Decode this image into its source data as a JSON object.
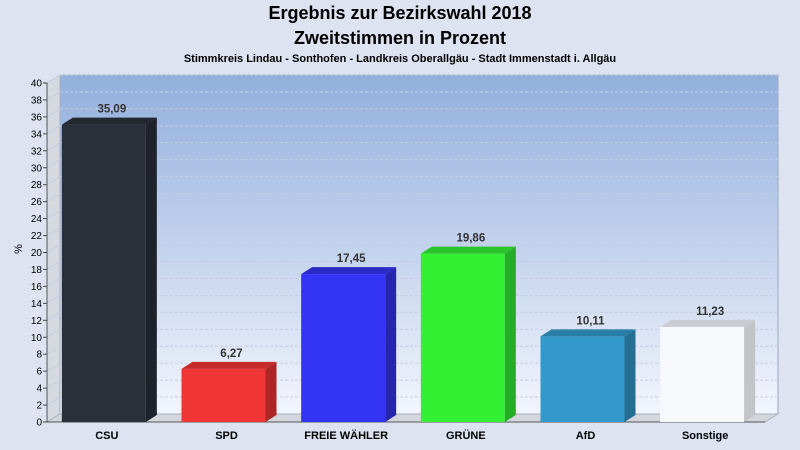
{
  "chart_data": {
    "type": "bar",
    "title": "Ergebnis zur Bezirkswahl 2018",
    "subtitle": "Zweitstimmen in Prozent",
    "caption": "Stimmkreis Lindau - Sonthofen - Landkreis Oberallgäu - Stadt Immenstadt i. Allgäu",
    "ylabel": "%",
    "ylim": [
      0,
      40
    ],
    "ytick_step": 2,
    "grid": true,
    "categories": [
      "CSU",
      "SPD",
      "FREIE WÄHLER",
      "GRÜNE",
      "AfD",
      "Sonstige"
    ],
    "values": [
      35.09,
      6.27,
      17.45,
      19.86,
      10.11,
      11.23
    ],
    "value_labels": [
      "35,09",
      "6,27",
      "17,45",
      "19,86",
      "10,11",
      "11,23"
    ],
    "colors": [
      "#2a2f3a",
      "#f03535",
      "#3434f5",
      "#33f033",
      "#3399cc",
      "#f7f8fc"
    ]
  }
}
